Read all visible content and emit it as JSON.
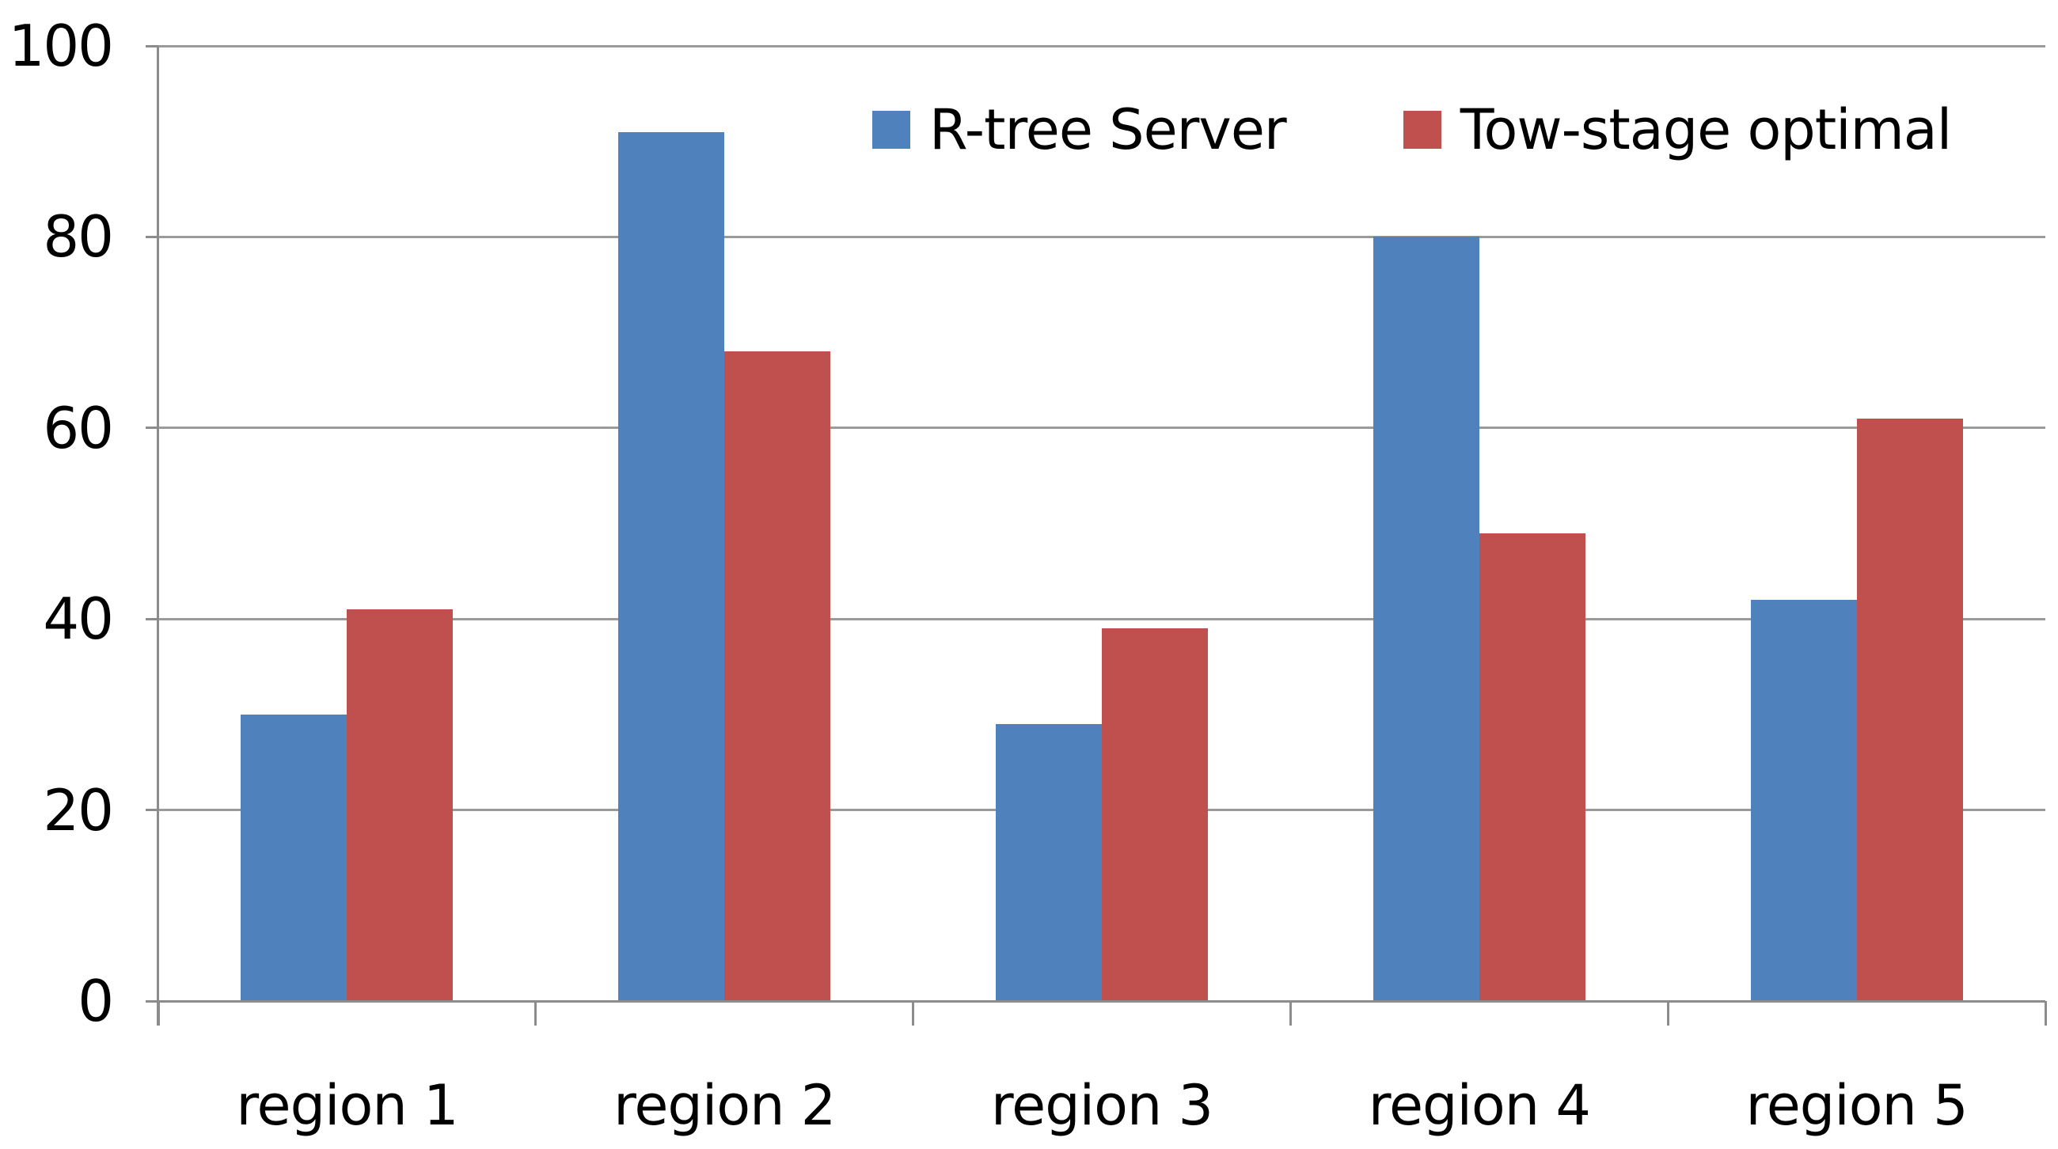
{
  "chart_data": {
    "type": "bar",
    "categories": [
      "region 1",
      "region 2",
      "region 3",
      "region 4",
      "region 5"
    ],
    "series": [
      {
        "name": "R-tree Server",
        "color": "#4F81BD",
        "values": [
          30,
          91,
          29,
          80,
          42
        ]
      },
      {
        "name": "Tow-stage optimal",
        "color": "#C0504D",
        "values": [
          41,
          68,
          39,
          49,
          61
        ]
      }
    ],
    "title": "",
    "xlabel": "",
    "ylabel": "",
    "ylim": [
      0,
      100
    ],
    "y_ticks": [
      0,
      20,
      40,
      60,
      80,
      100
    ],
    "grid": "horizontal",
    "legend_position": "top-inside",
    "colors": {
      "gridline": "#9a9a9a",
      "axis": "#8c8c8c",
      "background": "#ffffff",
      "text": "#000000"
    }
  }
}
